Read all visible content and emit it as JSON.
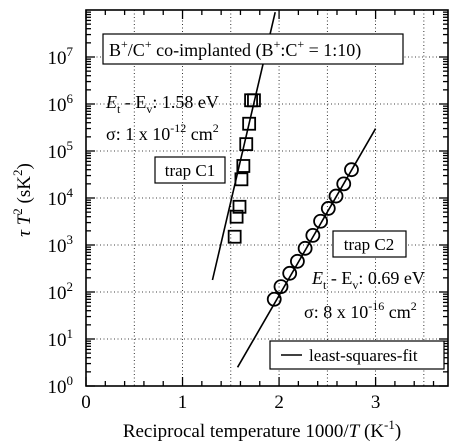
{
  "chart_data": {
    "type": "scatter",
    "x_axis": {
      "label_prefix": "Reciprocal temperature 1000/",
      "label_var": "T",
      "label_unit_open": " (K",
      "label_unit_sup": "-1",
      "label_unit_close": ")",
      "lim": [
        0,
        3.75
      ],
      "ticks": [
        0,
        1,
        2,
        3
      ],
      "tick_labels": [
        "0",
        "1",
        "2",
        "3"
      ]
    },
    "y_axis": {
      "scale": "log",
      "lim": [
        1,
        100000000
      ],
      "tick_labels": [
        {
          "base": "10",
          "exp": "0"
        },
        {
          "base": "10",
          "exp": "1"
        },
        {
          "base": "10",
          "exp": "2"
        },
        {
          "base": "10",
          "exp": "3"
        },
        {
          "base": "10",
          "exp": "4"
        },
        {
          "base": "10",
          "exp": "5"
        },
        {
          "base": "10",
          "exp": "6"
        },
        {
          "base": "10",
          "exp": "7"
        }
      ],
      "label_tau": "τ",
      "label_T": " T",
      "label_sup": "2",
      "label_unit": " (sK",
      "label_unit_sup": "2",
      "label_close": ")"
    },
    "grid": true,
    "title_box": {
      "p1": "B",
      "s1": "+",
      "p2": "/C",
      "s2": "+",
      "p3": " co-implanted (B",
      "s3": "+",
      "p4": ":C",
      "s4": "+",
      "p5": " = 1:10)"
    },
    "series": [
      {
        "name": "trap C1",
        "marker": "square",
        "x": [
          1.54,
          1.56,
          1.59,
          1.61,
          1.63,
          1.66,
          1.69,
          1.71,
          1.74
        ],
        "y": [
          1500,
          4000,
          6500,
          25000,
          48000,
          140000,
          380000,
          1200000,
          1200000
        ],
        "fit": {
          "x": [
            1.31,
            1.96
          ],
          "y": [
            180,
            90000000
          ]
        },
        "params": {
          "ea_label_E": "E",
          "ea_label_t": "t",
          "ea_label_mid": " - E",
          "ea_label_v": "v",
          "ea_value": ": 1.58 eV",
          "sigma_label": "σ: 1  x 10",
          "sigma_exp": "-12",
          "sigma_unit": " cm",
          "sigma_unit_sup": "2"
        }
      },
      {
        "name": "trap C2",
        "marker": "circle",
        "x": [
          1.95,
          2.02,
          2.11,
          2.19,
          2.27,
          2.35,
          2.43,
          2.51,
          2.59,
          2.67,
          2.75
        ],
        "y": [
          70,
          130,
          250,
          450,
          850,
          1600,
          3200,
          6000,
          11000,
          20000,
          40000
        ],
        "fit": {
          "x": [
            1.57,
            3.0
          ],
          "y": [
            2.5,
            300000
          ]
        },
        "params": {
          "ea_label_E": "E",
          "ea_label_t": "t",
          "ea_label_mid": " - E",
          "ea_label_v": "v",
          "ea_value": ": 0.69 eV",
          "sigma_label": "σ: 8  x 10",
          "sigma_exp": "-16",
          "sigma_unit": " cm",
          "sigma_unit_sup": "2"
        }
      }
    ],
    "legend": {
      "label": "least-squares-fit",
      "position": "bottom-right"
    }
  }
}
